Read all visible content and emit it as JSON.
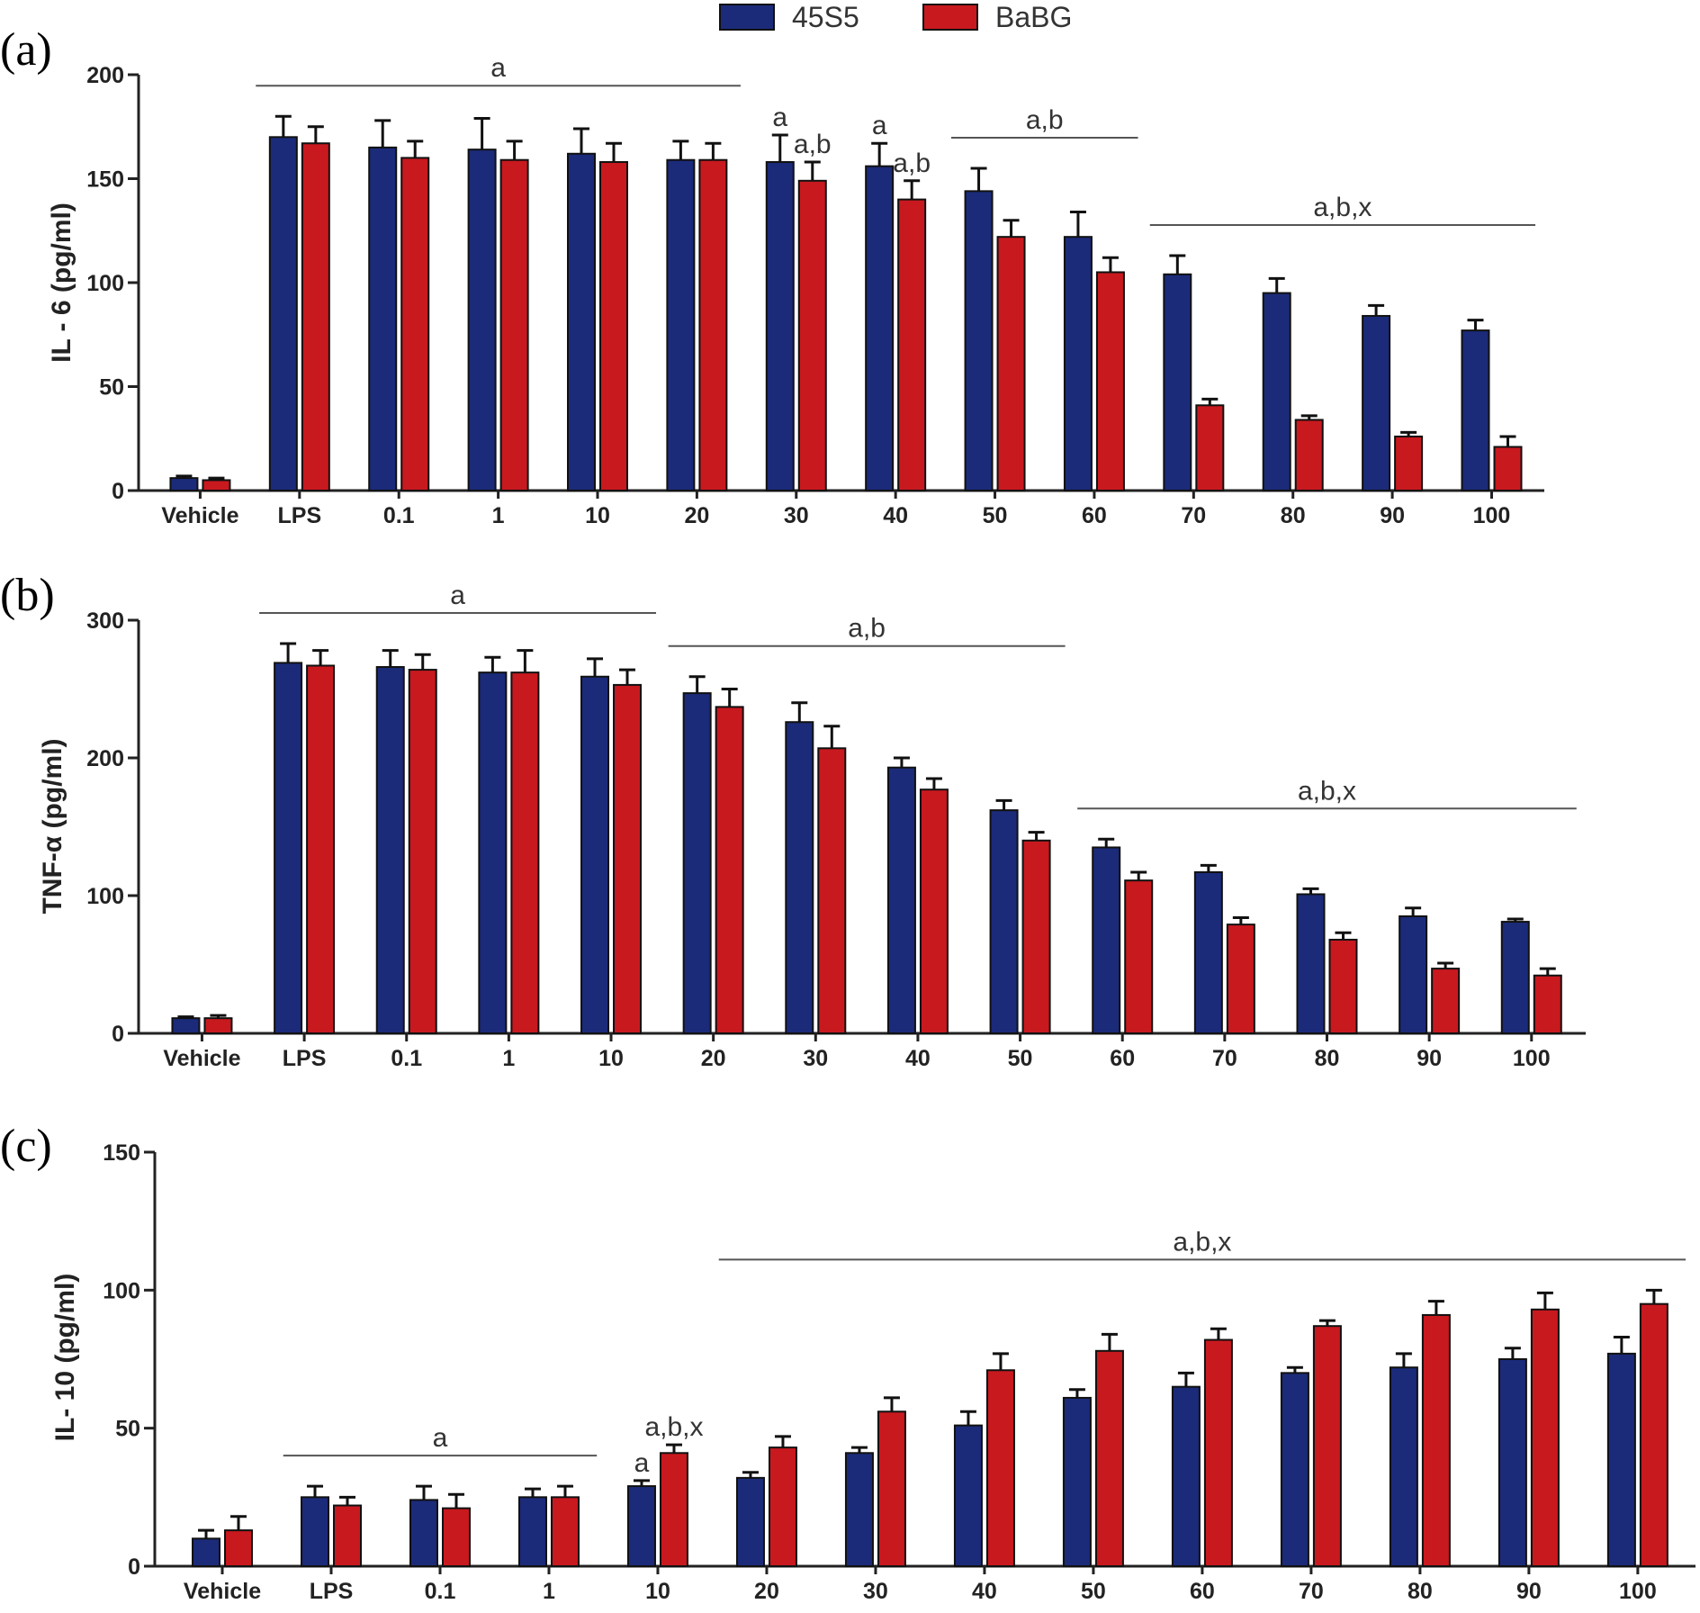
{
  "legend": [
    {
      "label": "45S5",
      "color": "#1b2b7a"
    },
    {
      "label": "BaBG",
      "color": "#c8191f"
    }
  ],
  "colors": {
    "45S5": "#1b2b7a",
    "BaBG": "#c8191f",
    "errorbar": "#111111",
    "axis": "#222222"
  },
  "chart_data": [
    {
      "panel": "(a)",
      "type": "bar",
      "ylabel": "IL - 6 (pg/ml)",
      "ylim": [
        0,
        200
      ],
      "yticks": [
        "0",
        "50",
        "100",
        "150",
        "200"
      ],
      "categories": [
        "Vehicle",
        "LPS",
        "0.1",
        "1",
        "10",
        "20",
        "30",
        "40",
        "50",
        "60",
        "70",
        "80",
        "90",
        "100"
      ],
      "series": [
        {
          "name": "45S5",
          "values": [
            6,
            170,
            165,
            164,
            162,
            159,
            158,
            156,
            144,
            122,
            104,
            95,
            84,
            77
          ],
          "errors": [
            1,
            10,
            13,
            15,
            12,
            9,
            13,
            11,
            11,
            12,
            9,
            7,
            5,
            5
          ]
        },
        {
          "name": "BaBG",
          "values": [
            5,
            167,
            160,
            159,
            158,
            159,
            149,
            140,
            122,
            105,
            41,
            34,
            26,
            21
          ],
          "errors": [
            1,
            8,
            8,
            9,
            9,
            8,
            9,
            9,
            8,
            7,
            3,
            2,
            2,
            5
          ]
        }
      ],
      "annotations": [
        {
          "text": "a",
          "from": "LPS",
          "to": "20"
        },
        {
          "text": "a",
          "over": "30",
          "series": "45S5"
        },
        {
          "text": "a,b",
          "over": "30",
          "series": "BaBG"
        },
        {
          "text": "a",
          "over": "40",
          "series": "45S5"
        },
        {
          "text": "a,b",
          "over": "40",
          "series": "BaBG"
        },
        {
          "text": "a,b",
          "from": "50",
          "to": "60"
        },
        {
          "text": "a,b,x",
          "from": "70",
          "to": "100"
        }
      ]
    },
    {
      "panel": "(b)",
      "type": "bar",
      "ylabel": "TNF-α (pg/ml)",
      "ylim": [
        0,
        300
      ],
      "yticks": [
        "0",
        "100",
        "200",
        "300"
      ],
      "categories": [
        "Vehicle",
        "LPS",
        "0.1",
        "1",
        "10",
        "20",
        "30",
        "40",
        "50",
        "60",
        "70",
        "80",
        "90",
        "100"
      ],
      "series": [
        {
          "name": "45S5",
          "values": [
            11,
            269,
            266,
            262,
            259,
            247,
            226,
            193,
            162,
            135,
            117,
            101,
            85,
            81
          ],
          "errors": [
            1,
            14,
            12,
            11,
            13,
            12,
            14,
            7,
            7,
            6,
            5,
            4,
            6,
            2
          ]
        },
        {
          "name": "BaBG",
          "values": [
            11,
            267,
            264,
            262,
            253,
            237,
            207,
            177,
            140,
            111,
            79,
            68,
            47,
            42
          ],
          "errors": [
            2,
            11,
            11,
            16,
            11,
            13,
            16,
            8,
            6,
            6,
            5,
            5,
            4,
            5
          ]
        }
      ],
      "annotations": [
        {
          "text": "a",
          "from": "LPS",
          "to": "10"
        },
        {
          "text": "a,b",
          "from": "20",
          "to": "50"
        },
        {
          "text": "a,b,x",
          "from": "60",
          "to": "100"
        }
      ]
    },
    {
      "panel": "(c)",
      "type": "bar",
      "ylabel": "IL- 10 (pg/ml)",
      "ylim": [
        0,
        150
      ],
      "yticks": [
        "0",
        "50",
        "100",
        "150"
      ],
      "categories": [
        "Vehicle",
        "LPS",
        "0.1",
        "1",
        "10",
        "20",
        "30",
        "40",
        "50",
        "60",
        "70",
        "80",
        "90",
        "100"
      ],
      "series": [
        {
          "name": "45S5",
          "values": [
            10,
            25,
            24,
            25,
            29,
            32,
            41,
            51,
            61,
            65,
            70,
            72,
            75,
            77
          ],
          "errors": [
            3,
            4,
            5,
            3,
            2,
            2,
            2,
            5,
            3,
            5,
            2,
            5,
            4,
            6
          ]
        },
        {
          "name": "BaBG",
          "values": [
            13,
            22,
            21,
            25,
            41,
            43,
            56,
            71,
            78,
            82,
            87,
            91,
            93,
            95
          ],
          "errors": [
            5,
            3,
            5,
            4,
            3,
            4,
            5,
            6,
            6,
            4,
            2,
            5,
            6,
            5
          ]
        }
      ],
      "annotations": [
        {
          "text": "a",
          "from": "LPS",
          "to": "1"
        },
        {
          "text": "a",
          "over": "10",
          "series": "45S5"
        },
        {
          "text": "a,b,x",
          "over": "10",
          "series": "BaBG"
        },
        {
          "text": "a,b,x",
          "from": "20",
          "to": "100"
        }
      ]
    }
  ]
}
